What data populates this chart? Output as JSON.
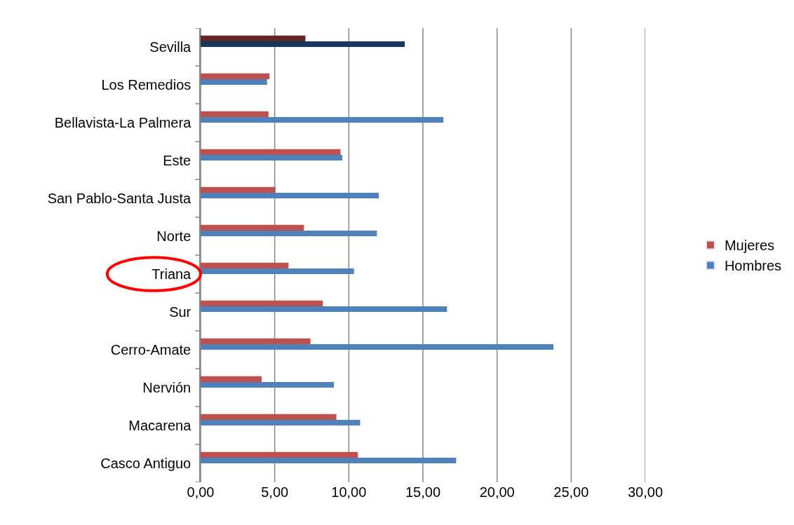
{
  "chart_data": {
    "type": "bar",
    "orientation": "horizontal",
    "categories": [
      "Sevilla",
      "Los Remedios",
      "Bellavista-La Palmera",
      "Este",
      "San Pablo-Santa Justa",
      "Norte",
      "Triana",
      "Sur",
      "Cerro-Amate",
      "Nervión",
      "Macarena",
      "Casco Antiguo"
    ],
    "series": [
      {
        "name": "Mujeres",
        "color": "#c0504d",
        "colors": [
          "#632523",
          "#c0504d",
          "#c0504d",
          "#c0504d",
          "#c0504d",
          "#c0504d",
          "#c0504d",
          "#c0504d",
          "#c0504d",
          "#c0504d",
          "#c0504d",
          "#c0504d"
        ],
        "values": [
          7.07,
          4.65,
          4.58,
          9.44,
          5.05,
          6.97,
          5.93,
          8.25,
          7.41,
          4.12,
          9.16,
          10.61
        ]
      },
      {
        "name": "Hombres",
        "color": "#4f81bd",
        "colors": [
          "#17375e",
          "#4f81bd",
          "#4f81bd",
          "#4f81bd",
          "#4f81bd",
          "#4f81bd",
          "#4f81bd",
          "#4f81bd",
          "#4f81bd",
          "#4f81bd",
          "#4f81bd",
          "#4f81bd"
        ],
        "values": [
          13.77,
          4.48,
          16.38,
          9.56,
          12.02,
          11.89,
          10.35,
          16.62,
          23.8,
          8.99,
          10.76,
          17.24
        ]
      }
    ],
    "xlim": [
      0,
      30
    ],
    "xticks": [
      {
        "value": 0,
        "label": "0,00"
      },
      {
        "value": 5,
        "label": "5,00"
      },
      {
        "value": 10,
        "label": "10,00"
      },
      {
        "value": 15,
        "label": "15,00"
      },
      {
        "value": 20,
        "label": "20,00"
      },
      {
        "value": 25,
        "label": "25,00"
      },
      {
        "value": 30,
        "label": "30,00"
      }
    ],
    "grid": "x",
    "legend": "right"
  }
}
